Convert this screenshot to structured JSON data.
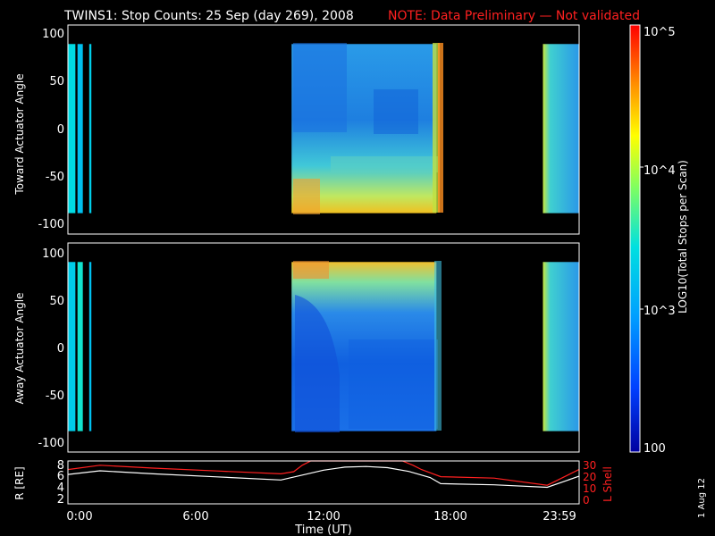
{
  "header": {
    "title": "TWINS1: Stop Counts: 25 Sep (day 269), 2008",
    "note": "NOTE: Data Preliminary — Not validated"
  },
  "panels": {
    "toward": {
      "ylabel": "Toward Actuator Angle",
      "ticks": [
        "100",
        "50",
        "0",
        "-50",
        "-100"
      ]
    },
    "away": {
      "ylabel": "Away Actuator Angle",
      "ticks": [
        "100",
        "50",
        "0",
        "-50",
        "-100"
      ]
    },
    "orbit": {
      "left_label": "R [RE]",
      "left_ticks": [
        "8",
        "6",
        "4",
        "2"
      ],
      "right_label": "L Shell",
      "right_ticks": [
        "30",
        "20",
        "10",
        "0"
      ]
    }
  },
  "time_axis": {
    "label": "Time (UT)",
    "ticks": [
      "0:00",
      "6:00",
      "12:00",
      "18:00",
      "23:59"
    ]
  },
  "colorbar": {
    "label": "LOG10(Total Stops per Scan)",
    "ticks": [
      "10^5",
      "10^4",
      "10^3",
      "100"
    ],
    "scale": "log",
    "range": [
      100,
      100000
    ]
  },
  "stamp": "1 Aug 12",
  "colors": {
    "title": "#ffffff",
    "note": "#ff2020",
    "orbit_r": "#ffffff",
    "orbit_l": "#ff2020"
  },
  "chart_data": [
    {
      "type": "heatmap",
      "name": "Toward",
      "x_range_hours": [
        0,
        24
      ],
      "ylim": [
        -110,
        110
      ],
      "data_y_range": [
        -88,
        90
      ],
      "zlim": [
        2,
        5
      ],
      "z_scale": "log10",
      "intervals": [
        {
          "x": [
            0.0,
            0.35
          ],
          "z": 3.4
        },
        {
          "x": [
            0.45,
            0.7
          ],
          "z": 3.2
        },
        {
          "x": [
            1.0,
            1.1
          ],
          "z": 3.3
        },
        {
          "x": [
            10.5,
            17.3
          ],
          "z": 2.9
        },
        {
          "x": [
            22.3,
            23.99
          ],
          "z": 3.2
        }
      ]
    },
    {
      "type": "heatmap",
      "name": "Away",
      "x_range_hours": [
        0,
        24
      ],
      "ylim": [
        -110,
        110
      ],
      "data_y_range": [
        -88,
        90
      ],
      "zlim": [
        2,
        5
      ],
      "z_scale": "log10",
      "intervals": [
        {
          "x": [
            0.0,
            0.35
          ],
          "z": 3.3
        },
        {
          "x": [
            0.45,
            0.7
          ],
          "z": 3.5
        },
        {
          "x": [
            1.0,
            1.1
          ],
          "z": 3.2
        },
        {
          "x": [
            10.5,
            17.3
          ],
          "z": 2.7
        },
        {
          "x": [
            22.3,
            23.99
          ],
          "z": 3.3
        }
      ]
    },
    {
      "type": "line",
      "name": "Orbit",
      "x_range_hours": [
        0,
        24
      ],
      "left_ylim": [
        1.5,
        8.5
      ],
      "right_ylim": [
        0,
        30
      ],
      "series": [
        {
          "name": "R",
          "axis": "left",
          "x": [
            0,
            1.5,
            4,
            7,
            10,
            11,
            12,
            13,
            14,
            15,
            16,
            17,
            17.5,
            20,
            22.5,
            23.99
          ],
          "y": [
            6.3,
            6.9,
            6.4,
            5.9,
            5.4,
            6.2,
            7.0,
            7.5,
            7.6,
            7.4,
            6.8,
            5.8,
            4.8,
            4.6,
            4.2,
            6.0
          ]
        },
        {
          "axis": "right",
          "x": [
            0,
            1.5,
            4,
            7,
            10,
            10.6,
            11,
            11.4,
            15.7,
            16.2,
            16.6,
            17.5,
            20,
            22.5,
            23.99
          ],
          "y": [
            24,
            27,
            25,
            23,
            21,
            22.5,
            27,
            30,
            30,
            27,
            24,
            19,
            18,
            13,
            24
          ]
        }
      ]
    }
  ]
}
